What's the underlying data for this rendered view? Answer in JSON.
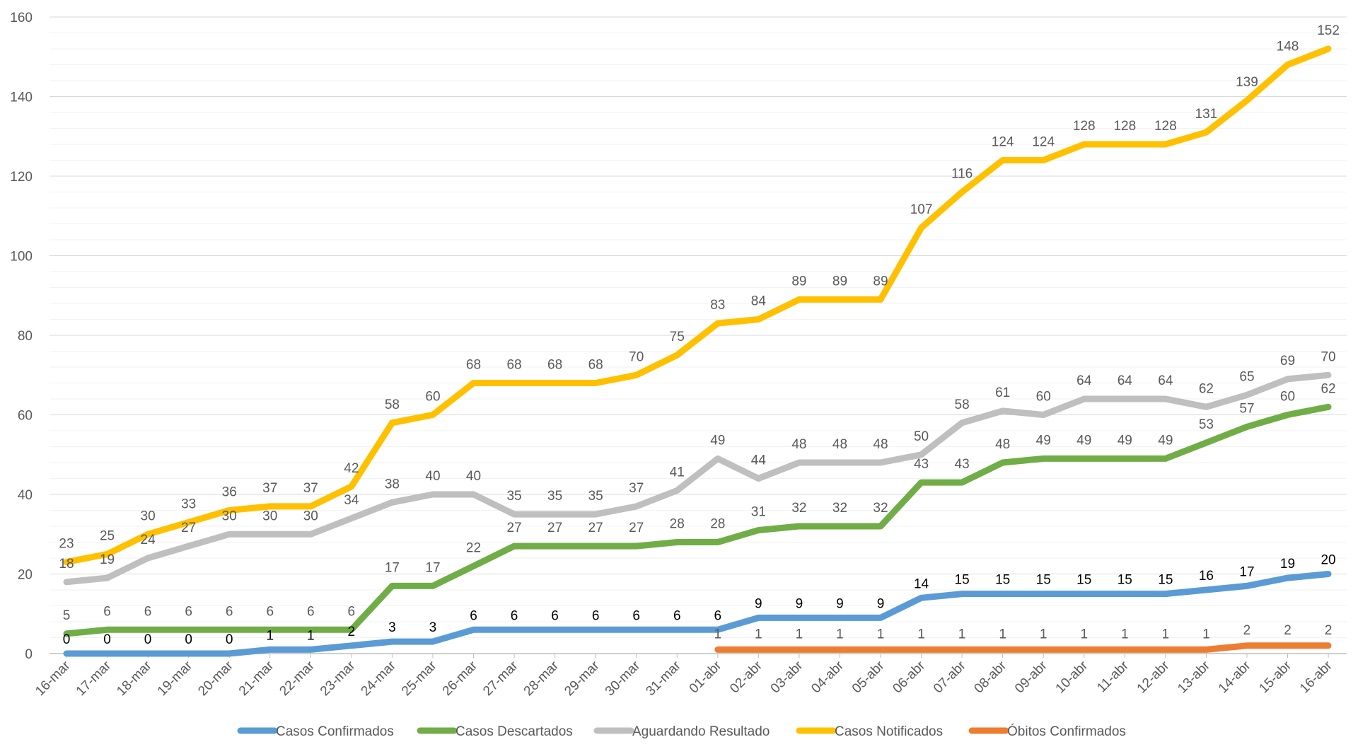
{
  "chart_data": {
    "type": "line",
    "title": "",
    "xlabel": "",
    "ylabel": "",
    "ylim": [
      0,
      160
    ],
    "yticks": [
      0,
      20,
      40,
      60,
      80,
      100,
      120,
      140,
      160
    ],
    "grid": "horizontal",
    "legend_position": "bottom",
    "categories": [
      "16-mar",
      "17-mar",
      "18-mar",
      "19-mar",
      "20-mar",
      "21-mar",
      "22-mar",
      "23-mar",
      "24-mar",
      "25-mar",
      "26-mar",
      "27-mar",
      "28-mar",
      "29-mar",
      "30-mar",
      "31-mar",
      "01-abr",
      "02-abr",
      "03-abr",
      "04-abr",
      "05-abr",
      "06-abr",
      "07-abr",
      "08-abr",
      "09-abr",
      "10-abr",
      "11-abr",
      "12-abr",
      "13-abr",
      "14-abr",
      "15-abr",
      "16-abr"
    ],
    "series": [
      {
        "name": "Casos Confirmados",
        "color": "#5B9BD5",
        "label_color": "#000000",
        "values": [
          0,
          0,
          0,
          0,
          0,
          1,
          1,
          2,
          3,
          3,
          6,
          6,
          6,
          6,
          6,
          6,
          6,
          9,
          9,
          9,
          9,
          14,
          15,
          15,
          15,
          15,
          15,
          15,
          16,
          17,
          19,
          20
        ]
      },
      {
        "name": "Casos Descartados",
        "color": "#70AD47",
        "label_color": "#595959",
        "values": [
          5,
          6,
          6,
          6,
          6,
          6,
          6,
          6,
          17,
          17,
          22,
          27,
          27,
          27,
          27,
          28,
          28,
          31,
          32,
          32,
          32,
          43,
          43,
          48,
          49,
          49,
          49,
          49,
          53,
          57,
          60,
          62
        ]
      },
      {
        "name": "Aguardando Resultado",
        "color": "#BFBFBF",
        "label_color": "#595959",
        "values": [
          18,
          19,
          24,
          27,
          30,
          30,
          30,
          34,
          38,
          40,
          40,
          35,
          35,
          35,
          37,
          41,
          49,
          44,
          48,
          48,
          48,
          50,
          58,
          61,
          60,
          64,
          64,
          64,
          62,
          65,
          69,
          70
        ]
      },
      {
        "name": "Casos Notificados",
        "color": "#FFC000",
        "label_color": "#595959",
        "values": [
          23,
          25,
          30,
          33,
          36,
          37,
          37,
          42,
          58,
          60,
          68,
          68,
          68,
          68,
          70,
          75,
          83,
          84,
          89,
          89,
          89,
          107,
          116,
          124,
          124,
          128,
          128,
          128,
          131,
          139,
          148,
          152
        ]
      },
      {
        "name": "Óbitos Confirmados",
        "color": "#ED7D31",
        "label_color": "#595959",
        "values": [
          null,
          null,
          null,
          null,
          null,
          null,
          null,
          null,
          null,
          null,
          null,
          null,
          null,
          null,
          null,
          null,
          1,
          1,
          1,
          1,
          1,
          1,
          1,
          1,
          1,
          1,
          1,
          1,
          1,
          2,
          2,
          2
        ]
      }
    ]
  }
}
